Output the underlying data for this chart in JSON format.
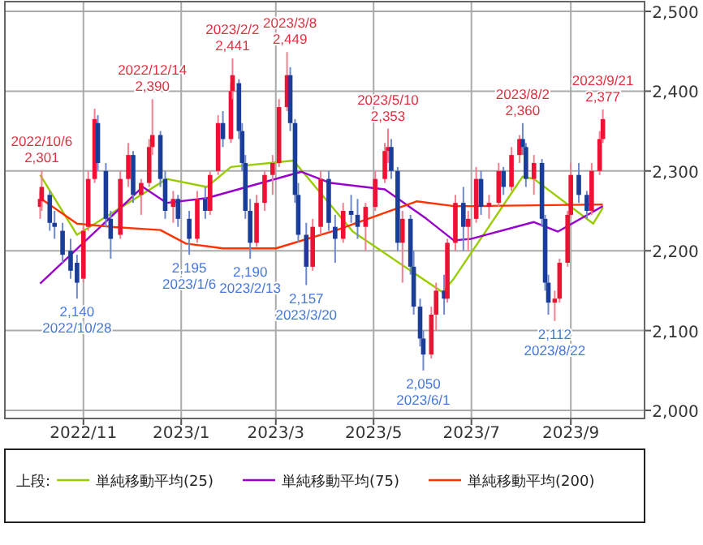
{
  "chart_data": {
    "type": "candlestick",
    "x": [
      "2022-10-05",
      "2022-10-06",
      "2022-10-11",
      "2022-10-14",
      "2022-10-19",
      "2022-10-24",
      "2022-10-28",
      "2022-11-01",
      "2022-11-04",
      "2022-11-08",
      "2022-11-10",
      "2022-11-15",
      "2022-11-18",
      "2022-11-24",
      "2022-11-29",
      "2022-12-02",
      "2022-12-07",
      "2022-12-12",
      "2022-12-14",
      "2022-12-19",
      "2022-12-22",
      "2022-12-27",
      "2022-12-30",
      "2023-01-06",
      "2023-01-11",
      "2023-01-16",
      "2023-01-19",
      "2023-01-24",
      "2023-01-27",
      "2023-02-01",
      "2023-02-02",
      "2023-02-06",
      "2023-02-08",
      "2023-02-10",
      "2023-02-13",
      "2023-02-17",
      "2023-02-22",
      "2023-02-27",
      "2023-03-03",
      "2023-03-08",
      "2023-03-10",
      "2023-03-13",
      "2023-03-15",
      "2023-03-20",
      "2023-03-24",
      "2023-03-29",
      "2023-04-03",
      "2023-04-07",
      "2023-04-12",
      "2023-04-17",
      "2023-04-21",
      "2023-04-26",
      "2023-05-02",
      "2023-05-08",
      "2023-05-10",
      "2023-05-12",
      "2023-05-16",
      "2023-05-19",
      "2023-05-24",
      "2023-05-26",
      "2023-05-30",
      "2023-06-01",
      "2023-06-06",
      "2023-06-09",
      "2023-06-14",
      "2023-06-16",
      "2023-06-21",
      "2023-06-26",
      "2023-06-29",
      "2023-07-04",
      "2023-07-07",
      "2023-07-12",
      "2023-07-18",
      "2023-07-21",
      "2023-07-26",
      "2023-07-31",
      "2023-08-02",
      "2023-08-04",
      "2023-08-09",
      "2023-08-14",
      "2023-08-16",
      "2023-08-18",
      "2023-08-22",
      "2023-08-25",
      "2023-08-30",
      "2023-09-01",
      "2023-09-06",
      "2023-09-11",
      "2023-09-14",
      "2023-09-19",
      "2023-09-21"
    ],
    "ohlc": [
      [
        2255,
        2275,
        2240,
        2265
      ],
      [
        2262,
        2301,
        2250,
        2280
      ],
      [
        2270,
        2275,
        2225,
        2235
      ],
      [
        2235,
        2250,
        2215,
        2230
      ],
      [
        2225,
        2235,
        2185,
        2195
      ],
      [
        2200,
        2215,
        2165,
        2175
      ],
      [
        2185,
        2195,
        2140,
        2160
      ],
      [
        2165,
        2230,
        2160,
        2225
      ],
      [
        2230,
        2300,
        2225,
        2290
      ],
      [
        2290,
        2378,
        2285,
        2365
      ],
      [
        2360,
        2370,
        2300,
        2310
      ],
      [
        2300,
        2310,
        2230,
        2240
      ],
      [
        2240,
        2250,
        2190,
        2215
      ],
      [
        2220,
        2300,
        2215,
        2290
      ],
      [
        2290,
        2335,
        2280,
        2320
      ],
      [
        2320,
        2325,
        2260,
        2270
      ],
      [
        2270,
        2290,
        2245,
        2285
      ],
      [
        2285,
        2340,
        2280,
        2330
      ],
      [
        2330,
        2390,
        2320,
        2345
      ],
      [
        2345,
        2350,
        2280,
        2290
      ],
      [
        2290,
        2300,
        2240,
        2250
      ],
      [
        2255,
        2275,
        2235,
        2265
      ],
      [
        2265,
        2270,
        2230,
        2240
      ],
      [
        2240,
        2250,
        2195,
        2215
      ],
      [
        2215,
        2275,
        2210,
        2265
      ],
      [
        2265,
        2280,
        2240,
        2250
      ],
      [
        2250,
        2300,
        2245,
        2295
      ],
      [
        2300,
        2370,
        2295,
        2360
      ],
      [
        2360,
        2375,
        2330,
        2340
      ],
      [
        2340,
        2410,
        2335,
        2400
      ],
      [
        2400,
        2441,
        2390,
        2420
      ],
      [
        2410,
        2415,
        2340,
        2350
      ],
      [
        2350,
        2360,
        2300,
        2310
      ],
      [
        2310,
        2320,
        2240,
        2250
      ],
      [
        2250,
        2265,
        2190,
        2210
      ],
      [
        2210,
        2270,
        2205,
        2260
      ],
      [
        2260,
        2300,
        2250,
        2295
      ],
      [
        2295,
        2320,
        2270,
        2310
      ],
      [
        2310,
        2390,
        2305,
        2380
      ],
      [
        2380,
        2449,
        2375,
        2420
      ],
      [
        2420,
        2430,
        2350,
        2360
      ],
      [
        2360,
        2365,
        2260,
        2270
      ],
      [
        2270,
        2285,
        2210,
        2220
      ],
      [
        2220,
        2235,
        2157,
        2180
      ],
      [
        2180,
        2240,
        2175,
        2230
      ],
      [
        2230,
        2300,
        2220,
        2290
      ],
      [
        2290,
        2300,
        2225,
        2235
      ],
      [
        2230,
        2245,
        2185,
        2215
      ],
      [
        2215,
        2260,
        2210,
        2250
      ],
      [
        2250,
        2270,
        2235,
        2245
      ],
      [
        2245,
        2265,
        2215,
        2230
      ],
      [
        2230,
        2260,
        2200,
        2255
      ],
      [
        2255,
        2300,
        2250,
        2290
      ],
      [
        2290,
        2335,
        2285,
        2325
      ],
      [
        2325,
        2353,
        2310,
        2330
      ],
      [
        2330,
        2340,
        2290,
        2300
      ],
      [
        2300,
        2305,
        2200,
        2210
      ],
      [
        2210,
        2250,
        2160,
        2240
      ],
      [
        2240,
        2245,
        2170,
        2180
      ],
      [
        2180,
        2200,
        2120,
        2130
      ],
      [
        2130,
        2140,
        2080,
        2090
      ],
      [
        2090,
        2100,
        2050,
        2070
      ],
      [
        2070,
        2130,
        2065,
        2120
      ],
      [
        2120,
        2160,
        2100,
        2150
      ],
      [
        2150,
        2170,
        2120,
        2140
      ],
      [
        2140,
        2215,
        2135,
        2210
      ],
      [
        2210,
        2270,
        2200,
        2260
      ],
      [
        2260,
        2280,
        2200,
        2230
      ],
      [
        2230,
        2250,
        2200,
        2240
      ],
      [
        2240,
        2305,
        2235,
        2290
      ],
      [
        2290,
        2300,
        2245,
        2255
      ],
      [
        2255,
        2270,
        2240,
        2260
      ],
      [
        2260,
        2310,
        2255,
        2300
      ],
      [
        2300,
        2305,
        2270,
        2280
      ],
      [
        2280,
        2330,
        2275,
        2320
      ],
      [
        2320,
        2345,
        2310,
        2340
      ],
      [
        2340,
        2360,
        2320,
        2330
      ],
      [
        2330,
        2335,
        2280,
        2290
      ],
      [
        2290,
        2320,
        2270,
        2310
      ],
      [
        2310,
        2315,
        2230,
        2240
      ],
      [
        2240,
        2245,
        2150,
        2160
      ],
      [
        2160,
        2170,
        2120,
        2135
      ],
      [
        2135,
        2150,
        2112,
        2140
      ],
      [
        2140,
        2190,
        2135,
        2185
      ],
      [
        2185,
        2250,
        2180,
        2245
      ],
      [
        2245,
        2310,
        2240,
        2295
      ],
      [
        2295,
        2310,
        2260,
        2270
      ],
      [
        2270,
        2275,
        2240,
        2250
      ],
      [
        2250,
        2310,
        2245,
        2300
      ],
      [
        2300,
        2350,
        2295,
        2340
      ],
      [
        2340,
        2377,
        2335,
        2365
      ]
    ],
    "series": [
      {
        "name": "単純移動平均(25)",
        "type": "line",
        "color": "#99cc00",
        "x": [
          "2022-10-05",
          "2022-10-28",
          "2022-12-23",
          "2023-01-17",
          "2023-02-01",
          "2023-03-12",
          "2023-04-18",
          "2023-06-13",
          "2023-06-20",
          "2023-08-02",
          "2023-08-09",
          "2023-09-15",
          "2023-09-21"
        ],
        "values": [
          2295,
          2220,
          2290,
          2280,
          2305,
          2313,
          2224,
          2148,
          2165,
          2293,
          2290,
          2234,
          2254
        ]
      },
      {
        "name": "単純移動平均(75)",
        "type": "line",
        "color": "#9900cc",
        "x": [
          "2022-10-05",
          "2022-12-08",
          "2022-12-23",
          "2023-01-17",
          "2023-03-17",
          "2023-04-04",
          "2023-05-08",
          "2023-06-03",
          "2023-06-20",
          "2023-07-01",
          "2023-08-09",
          "2023-08-24",
          "2023-09-21"
        ],
        "values": [
          2159,
          2280,
          2260,
          2266,
          2299,
          2285,
          2277,
          2240,
          2213,
          2215,
          2236,
          2224,
          2256
        ]
      },
      {
        "name": "単純移動平均(200)",
        "type": "line",
        "color": "#ff3300",
        "x": [
          "2022-10-05",
          "2022-10-28",
          "2022-11-18",
          "2022-12-19",
          "2023-01-04",
          "2023-01-27",
          "2023-03-01",
          "2023-04-08",
          "2023-05-28",
          "2023-06-20",
          "2023-07-01",
          "2023-09-21"
        ],
        "values": [
          2266,
          2234,
          2230,
          2226,
          2209,
          2203,
          2203,
          2226,
          2262,
          2256,
          2256,
          2258
        ]
      }
    ],
    "xlim": [
      "2022-09-13",
      "2023-10-17"
    ],
    "xticks": [
      {
        "value": "2022-11-01",
        "label": "2022/11"
      },
      {
        "value": "2023-01-01",
        "label": "2023/1"
      },
      {
        "value": "2023-03-01",
        "label": "2023/3"
      },
      {
        "value": "2023-05-01",
        "label": "2023/5"
      },
      {
        "value": "2023-07-01",
        "label": "2023/7"
      },
      {
        "value": "2023-09-01",
        "label": "2023/9"
      }
    ],
    "ylim": [
      2000,
      2500
    ],
    "yticks": [
      {
        "value": 2000,
        "label": "2,000"
      },
      {
        "value": 2100,
        "label": "2,100"
      },
      {
        "value": 2200,
        "label": "2,200"
      },
      {
        "value": 2300,
        "label": "2,300"
      },
      {
        "value": 2400,
        "label": "2,400"
      },
      {
        "value": 2500,
        "label": "2,500"
      }
    ],
    "grid": true,
    "legend": "bottom",
    "legend_title": "上段:",
    "annotations": [
      {
        "text": "2022/10/6",
        "x": "2022-10-06",
        "y": 2301
      },
      {
        "text": "2,301",
        "x": "2022-10-06",
        "y": 2301
      },
      {
        "text": "2,140",
        "x": "2022-10-28",
        "y": 2140
      },
      {
        "text": "2022/10/28",
        "x": "2022-10-28",
        "y": 2140
      },
      {
        "text": "2022/12/14",
        "x": "2022-12-14",
        "y": 2390
      },
      {
        "text": "2,390",
        "x": "2022-12-14",
        "y": 2390
      },
      {
        "text": "2,195",
        "x": "2023-01-06",
        "y": 2195
      },
      {
        "text": "2023/1/6",
        "x": "2023-01-06",
        "y": 2195
      },
      {
        "text": "2023/2/2",
        "x": "2023-02-02",
        "y": 2441
      },
      {
        "text": "2,441",
        "x": "2023-02-02",
        "y": 2441
      },
      {
        "text": "2,190",
        "x": "2023-02-13",
        "y": 2190
      },
      {
        "text": "2023/2/13",
        "x": "2023-02-13",
        "y": 2190
      },
      {
        "text": "2023/3/8",
        "x": "2023-03-08",
        "y": 2449
      },
      {
        "text": "2,449",
        "x": "2023-03-08",
        "y": 2449
      },
      {
        "text": "2,157",
        "x": "2023-03-20",
        "y": 2157
      },
      {
        "text": "2023/3/20",
        "x": "2023-03-20",
        "y": 2157
      },
      {
        "text": "2023/5/10",
        "x": "2023-05-10",
        "y": 2353
      },
      {
        "text": "2,353",
        "x": "2023-05-10",
        "y": 2353
      },
      {
        "text": "2,050",
        "x": "2023-06-01",
        "y": 2050
      },
      {
        "text": "2023/6/1",
        "x": "2023-06-01",
        "y": 2050
      },
      {
        "text": "2023/8/2",
        "x": "2023-08-02",
        "y": 2360
      },
      {
        "text": "2,360",
        "x": "2023-08-02",
        "y": 2360
      },
      {
        "text": "2,112",
        "x": "2023-08-22",
        "y": 2112
      },
      {
        "text": "2023/8/22",
        "x": "2023-08-22",
        "y": 2112
      },
      {
        "text": "2023/9/21",
        "x": "2023-09-21",
        "y": 2377
      },
      {
        "text": "2,377",
        "x": "2023-09-21",
        "y": 2377
      }
    ]
  }
}
